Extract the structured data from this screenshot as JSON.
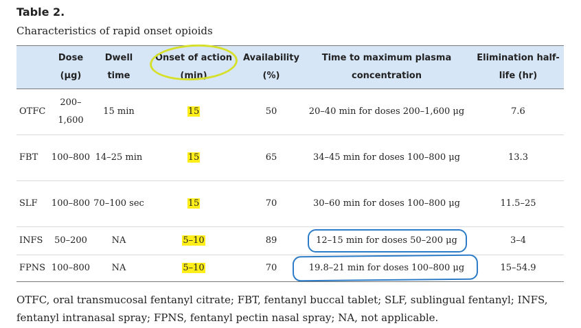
{
  "table_label": "Table 2.",
  "caption": "Characteristics of rapid onset opioids",
  "headers": {
    "drug": "",
    "dose": "Dose (μg)",
    "dwell": "Dwell time",
    "onset": "Onset of action (min)",
    "availability": "Availability (%)",
    "tmax": "Time to maximum plasma concentration",
    "half_life": "Elimination half-life (hr)"
  },
  "rows": [
    {
      "drug": "OTFC",
      "dose": "200–1,600",
      "dwell": "15 min",
      "onset": "15",
      "availability": "50",
      "tmax": "20–40 min for doses 200–1,600 μg",
      "half_life": "7.6"
    },
    {
      "drug": "FBT",
      "dose": "100–800",
      "dwell": "14–25 min",
      "onset": "15",
      "availability": "65",
      "tmax": "34–45 min for doses 100–800 μg",
      "half_life": "13.3"
    },
    {
      "drug": "SLF",
      "dose": "100–800",
      "dwell": "70–100 sec",
      "onset": "15",
      "availability": "70",
      "tmax": "30–60 min for doses 100–800 μg",
      "half_life": "11.5–25"
    },
    {
      "drug": "INFS",
      "dose": "50–200",
      "dwell": "NA",
      "onset": "5–10",
      "availability": "89",
      "tmax": "12–15 min for doses 50–200 μg",
      "half_life": "3–4"
    },
    {
      "drug": "FPNS",
      "dose": "100–800",
      "dwell": "NA",
      "onset": "5–10",
      "availability": "70",
      "tmax": "19.8–21 min for doses 100–800 μg",
      "half_life": "15–54.9"
    }
  ],
  "footnote": "OTFC, oral transmucosal fentanyl citrate; FBT, fentanyl buccal tablet; SLF, sublingual fentanyl; INFS, fentanyl intranasal spray; FPNS, fentanyl pectin nasal spray; NA, not applicable.",
  "annotations": {
    "highlight_color": "#ffee1a",
    "circle_color": "#d6e02a",
    "box_color": "#2b7bc7"
  }
}
